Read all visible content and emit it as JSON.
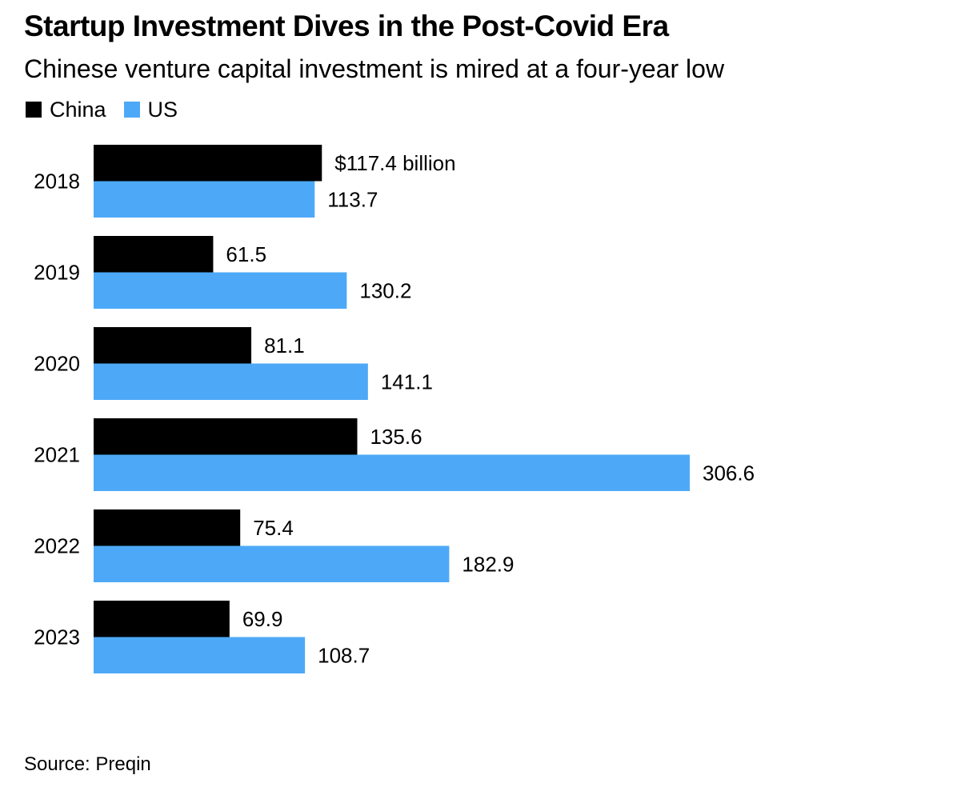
{
  "title": "Startup Investment Dives in the Post-Covid Era",
  "subtitle": "Chinese venture capital investment is mired at a four-year low",
  "source": "Source: Preqin",
  "chart_data": {
    "type": "bar",
    "orientation": "horizontal",
    "categories": [
      "2018",
      "2019",
      "2020",
      "2021",
      "2022",
      "2023"
    ],
    "series": [
      {
        "name": "China",
        "color": "#000000",
        "values": [
          117.4,
          61.5,
          81.1,
          135.6,
          75.4,
          69.9
        ],
        "labels": [
          "$117.4 billion",
          "61.5",
          "81.1",
          "135.6",
          "75.4",
          "69.9"
        ]
      },
      {
        "name": "US",
        "color": "#4da9f7",
        "values": [
          113.7,
          130.2,
          141.1,
          306.6,
          182.9,
          108.7
        ],
        "labels": [
          "113.7",
          "130.2",
          "141.1",
          "306.6",
          "182.9",
          "108.7"
        ]
      }
    ],
    "xlim": [
      0,
      306.6
    ],
    "grid": false,
    "legend_position": "top-left"
  }
}
